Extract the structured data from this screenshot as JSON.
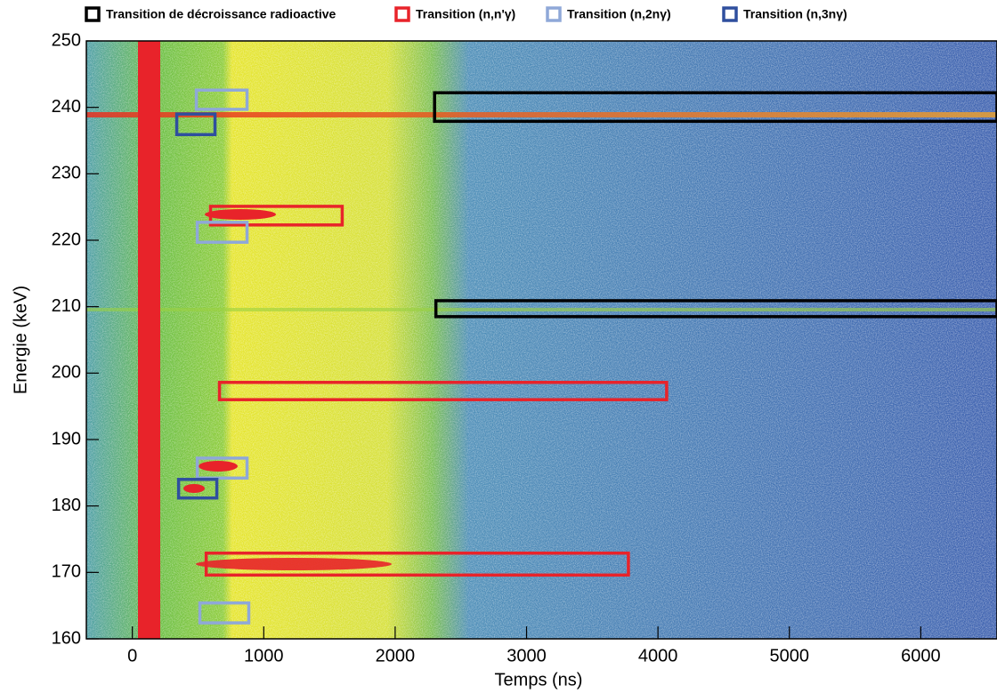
{
  "chart_data": {
    "type": "heatmap",
    "x_label": "Temps (ns)",
    "y_label": "Energie (keV)",
    "xlim": [
      -350,
      6580
    ],
    "ylim": [
      160,
      250
    ],
    "xticks": [
      0,
      1000,
      2000,
      3000,
      4000,
      5000,
      6000
    ],
    "yticks": [
      160,
      170,
      180,
      190,
      200,
      210,
      220,
      230,
      240,
      250
    ],
    "series": [
      {
        "name": "Transition de décroissance radioactive",
        "color": "#000000",
        "boxes": [
          {
            "x": [
              2300,
              6580
            ],
            "y": [
              237.9,
              242.2
            ]
          },
          {
            "x": [
              2310,
              6580
            ],
            "y": [
              208.5,
              210.9
            ]
          }
        ]
      },
      {
        "name": "Transition (n,n'γ)",
        "color": "#e8232a",
        "boxes": [
          {
            "x": [
              595,
              1597
            ],
            "y": [
              222.3,
              225.1
            ]
          },
          {
            "x": [
              663,
              4066
            ],
            "y": [
              196.0,
              198.6
            ]
          },
          {
            "x": [
              562,
              3775
            ],
            "y": [
              169.6,
              172.9
            ]
          }
        ]
      },
      {
        "name": "Transition (n,2nγ)",
        "color": "#8fa8d8",
        "boxes": [
          {
            "x": [
              487,
              873
            ],
            "y": [
              239.7,
              242.6
            ]
          },
          {
            "x": [
              494,
              873
            ],
            "y": [
              219.7,
              222.7
            ]
          },
          {
            "x": [
              494,
              873
            ],
            "y": [
              184.2,
              187.2
            ]
          },
          {
            "x": [
              514,
              886
            ],
            "y": [
              162.4,
              165.4
            ]
          }
        ]
      },
      {
        "name": "Transition (n,3nγ)",
        "color": "#2f4f9e",
        "boxes": [
          {
            "x": [
              338,
              629
            ],
            "y": [
              235.9,
              239.0
            ]
          },
          {
            "x": [
              352,
              643
            ],
            "y": [
              181.2,
              184.0
            ]
          }
        ]
      }
    ]
  }
}
